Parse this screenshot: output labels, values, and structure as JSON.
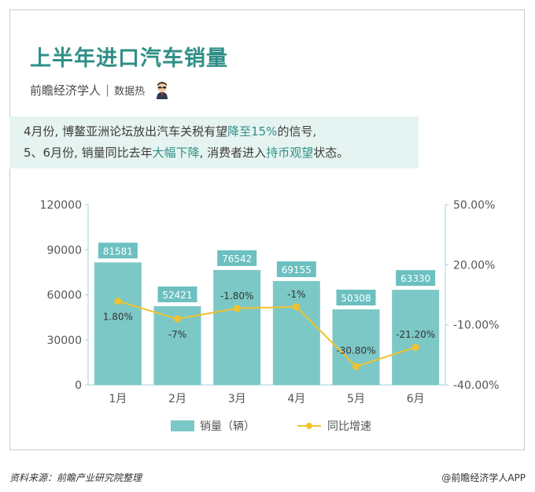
{
  "header": {
    "title": "上半年进口汽车销量",
    "author": "前瞻经济学人",
    "separator": "|",
    "tag": "数据热"
  },
  "intro": {
    "line1_a": "4月份, 博鳌亚洲论坛放出汽车关税有望",
    "line1_hl": "降至15%",
    "line1_b": "的信号,",
    "line2_a": "5、6月份, 销量同比去年",
    "line2_hl1": "大幅下降",
    "line2_b": ", 消费者进入",
    "line2_hl2": "持币观望",
    "line2_c": "状态。"
  },
  "footer": {
    "source": "资料来源：前瞻产业研究院整理",
    "brand": "@前瞻经济学人APP"
  },
  "colors": {
    "bar": "#7cc8c6",
    "bar_label_bg": "#6cc0c0",
    "line": "#f2c12e",
    "accent": "#2f8f86"
  },
  "chart_data": {
    "type": "bar",
    "categories": [
      "1月",
      "2月",
      "3月",
      "4月",
      "5月",
      "6月"
    ],
    "series": [
      {
        "name": "销量（辆）",
        "type": "bar",
        "axis": "left",
        "values": [
          81581,
          52421,
          76542,
          69155,
          50308,
          63330
        ],
        "labels": [
          "81581",
          "52421",
          "76542",
          "69155",
          "50308",
          "63330"
        ]
      },
      {
        "name": "同比增速",
        "type": "line",
        "axis": "right",
        "values": [
          1.8,
          -7,
          -1.8,
          -1,
          -30.8,
          -21.2
        ],
        "labels": [
          "1.80%",
          "-7%",
          "-1.80%",
          "-1%",
          "-30.80%",
          "-21.20%"
        ]
      }
    ],
    "y_left": {
      "ylim": [
        0,
        120000
      ],
      "ticks": [
        "0",
        "30000",
        "60000",
        "90000",
        "120000"
      ],
      "tick_values": [
        0,
        30000,
        60000,
        90000,
        120000
      ]
    },
    "y_right": {
      "ylim": [
        -40,
        50
      ],
      "ticks": [
        "-40.00%",
        "-10.00%",
        "20.00%",
        "50.00%"
      ],
      "tick_values": [
        -40,
        -10,
        20,
        50
      ]
    },
    "legend_position": "bottom-center",
    "grid": false
  }
}
